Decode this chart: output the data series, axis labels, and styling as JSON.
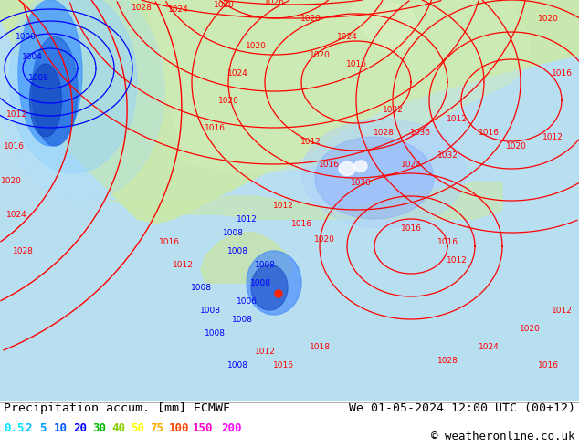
{
  "title_left": "Precipitation accum. [mm] ECMWF",
  "title_right": "We 01-05-2024 12:00 UTC (00+12)",
  "copyright": "© weatheronline.co.uk",
  "legend_values": [
    "0.5",
    "2",
    "5",
    "10",
    "20",
    "30",
    "40",
    "50",
    "75",
    "100",
    "150",
    "200"
  ],
  "legend_colors": [
    "#00e5ff",
    "#00bfff",
    "#0099ff",
    "#0055ff",
    "#0000ff",
    "#00bb00",
    "#88cc00",
    "#ffff00",
    "#ffaa00",
    "#ff4400",
    "#ff00cc",
    "#ff00ff"
  ],
  "bg_color": "#ffffff",
  "map_ocean": "#b8dff0",
  "map_land": "#c8e8b0",
  "map_land2": "#d8f0c0",
  "title_fontsize": 9.5,
  "legend_fontsize": 9,
  "copyright_fontsize": 9
}
